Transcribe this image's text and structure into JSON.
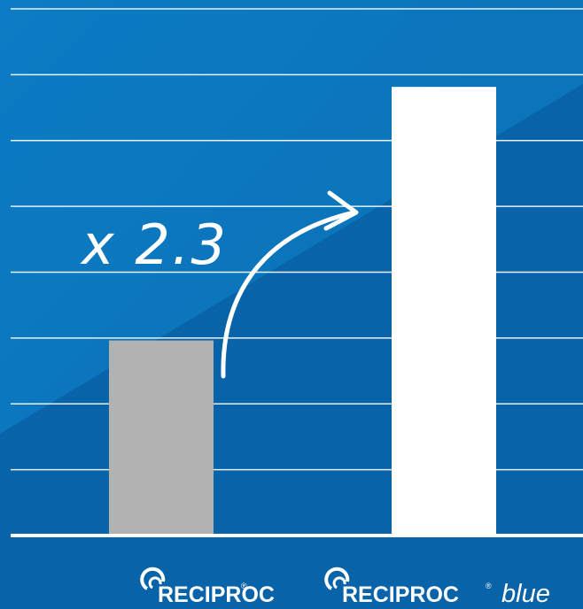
{
  "colors": {
    "background_light": "#0b78bf",
    "background_dark": "#0861a6",
    "gridline": "#ffffff",
    "bar_reciproc": "#b2b2b2",
    "bar_reciproc_blue": "#ffffff"
  },
  "annotation": {
    "multiplier_text": "x 2.3",
    "arrow_icon": "curved-arrow-icon"
  },
  "chart_data": {
    "type": "bar",
    "categories": [
      "RECIPROC",
      "RECIPROC blue"
    ],
    "values": [
      1,
      2.3
    ],
    "ylim": [
      0,
      2.7
    ],
    "grid": true,
    "legend": "none"
  },
  "logos": [
    {
      "brand": "RECIPROC",
      "registered": "®",
      "suffix": ""
    },
    {
      "brand": "RECIPROC",
      "registered": "®",
      "suffix": "blue"
    }
  ]
}
